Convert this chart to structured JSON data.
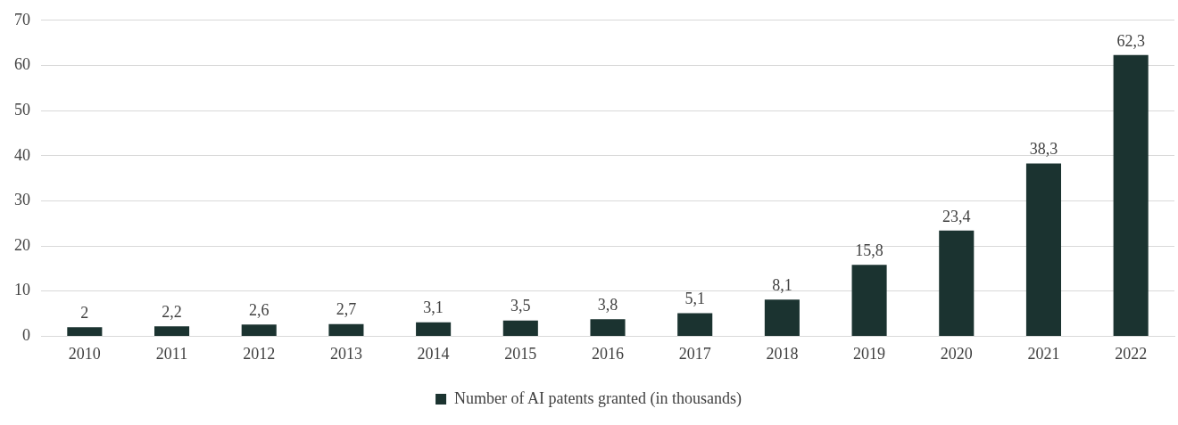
{
  "chart_data": {
    "type": "bar",
    "categories": [
      "2010",
      "2011",
      "2012",
      "2013",
      "2014",
      "2015",
      "2016",
      "2017",
      "2018",
      "2019",
      "2020",
      "2021",
      "2022"
    ],
    "series": [
      {
        "name": "Number of AI patents granted (in thousands)",
        "color": "#1b3330",
        "values": [
          2,
          2.2,
          2.6,
          2.7,
          3.1,
          3.5,
          3.8,
          5.1,
          8.1,
          15.8,
          23.4,
          38.3,
          62.3
        ],
        "value_labels": [
          "2",
          "2,2",
          "2,6",
          "2,7",
          "3,1",
          "3,5",
          "3,8",
          "5,1",
          "8,1",
          "15,8",
          "23,4",
          "38,3",
          "62,3"
        ]
      }
    ],
    "ylim": [
      0,
      70
    ],
    "yticks": [
      0,
      10,
      20,
      30,
      40,
      50,
      60,
      70
    ],
    "grid": "y",
    "legend": "bottom"
  }
}
